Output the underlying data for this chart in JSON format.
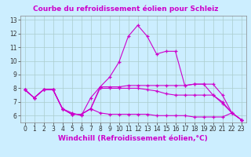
{
  "title": "Courbe du refroidissement éolien pour Schleiz",
  "xlabel": "Windchill (Refroidissement éolien,°C)",
  "background_color": "#cceeff",
  "line_color": "#cc00cc",
  "grid_color": "#aacccc",
  "xlim": [
    -0.5,
    23.5
  ],
  "ylim": [
    5.5,
    13.3
  ],
  "xticks": [
    0,
    1,
    2,
    3,
    4,
    5,
    6,
    7,
    8,
    9,
    10,
    11,
    12,
    13,
    14,
    15,
    16,
    17,
    18,
    19,
    20,
    21,
    22,
    23
  ],
  "yticks": [
    6,
    7,
    8,
    9,
    10,
    11,
    12,
    13
  ],
  "series": [
    {
      "x": [
        0,
        1,
        2,
        3,
        4,
        5,
        6,
        7,
        8,
        9,
        10,
        11,
        12,
        13,
        14,
        15,
        16,
        17,
        18,
        19,
        20,
        21,
        22,
        23
      ],
      "y": [
        7.9,
        7.3,
        7.9,
        7.9,
        6.5,
        6.2,
        6.0,
        7.3,
        8.1,
        8.8,
        9.9,
        11.8,
        12.6,
        11.8,
        10.5,
        10.7,
        10.7,
        8.2,
        8.3,
        8.3,
        7.5,
        6.9,
        6.2,
        5.7
      ]
    },
    {
      "x": [
        0,
        1,
        2,
        3,
        4,
        5,
        6,
        7,
        8,
        9,
        10,
        11,
        12,
        13,
        14,
        15,
        16,
        17,
        18,
        19,
        20,
        21,
        22,
        23
      ],
      "y": [
        7.9,
        7.3,
        7.9,
        7.9,
        6.5,
        6.1,
        6.1,
        6.5,
        8.1,
        8.1,
        8.1,
        8.2,
        8.2,
        8.2,
        8.2,
        8.2,
        8.2,
        8.2,
        8.3,
        8.3,
        8.3,
        7.5,
        6.2,
        5.7
      ]
    },
    {
      "x": [
        0,
        1,
        2,
        3,
        4,
        5,
        6,
        7,
        8,
        9,
        10,
        11,
        12,
        13,
        14,
        15,
        16,
        17,
        18,
        19,
        20,
        21,
        22,
        23
      ],
      "y": [
        7.9,
        7.3,
        7.9,
        7.9,
        6.5,
        6.1,
        6.1,
        6.5,
        8.0,
        8.0,
        8.0,
        8.0,
        8.0,
        7.9,
        7.8,
        7.6,
        7.5,
        7.5,
        7.5,
        7.5,
        7.5,
        7.0,
        6.2,
        5.7
      ]
    },
    {
      "x": [
        0,
        1,
        2,
        3,
        4,
        5,
        6,
        7,
        8,
        9,
        10,
        11,
        12,
        13,
        14,
        15,
        16,
        17,
        18,
        19,
        20,
        21,
        22,
        23
      ],
      "y": [
        7.9,
        7.3,
        7.9,
        7.9,
        6.5,
        6.1,
        6.1,
        6.5,
        6.2,
        6.1,
        6.1,
        6.1,
        6.1,
        6.1,
        6.0,
        6.0,
        6.0,
        6.0,
        5.9,
        5.9,
        5.9,
        5.9,
        6.2,
        5.7
      ]
    }
  ],
  "title_fontsize": 6.5,
  "tick_fontsize": 5.5,
  "xlabel_fontsize": 6.5
}
